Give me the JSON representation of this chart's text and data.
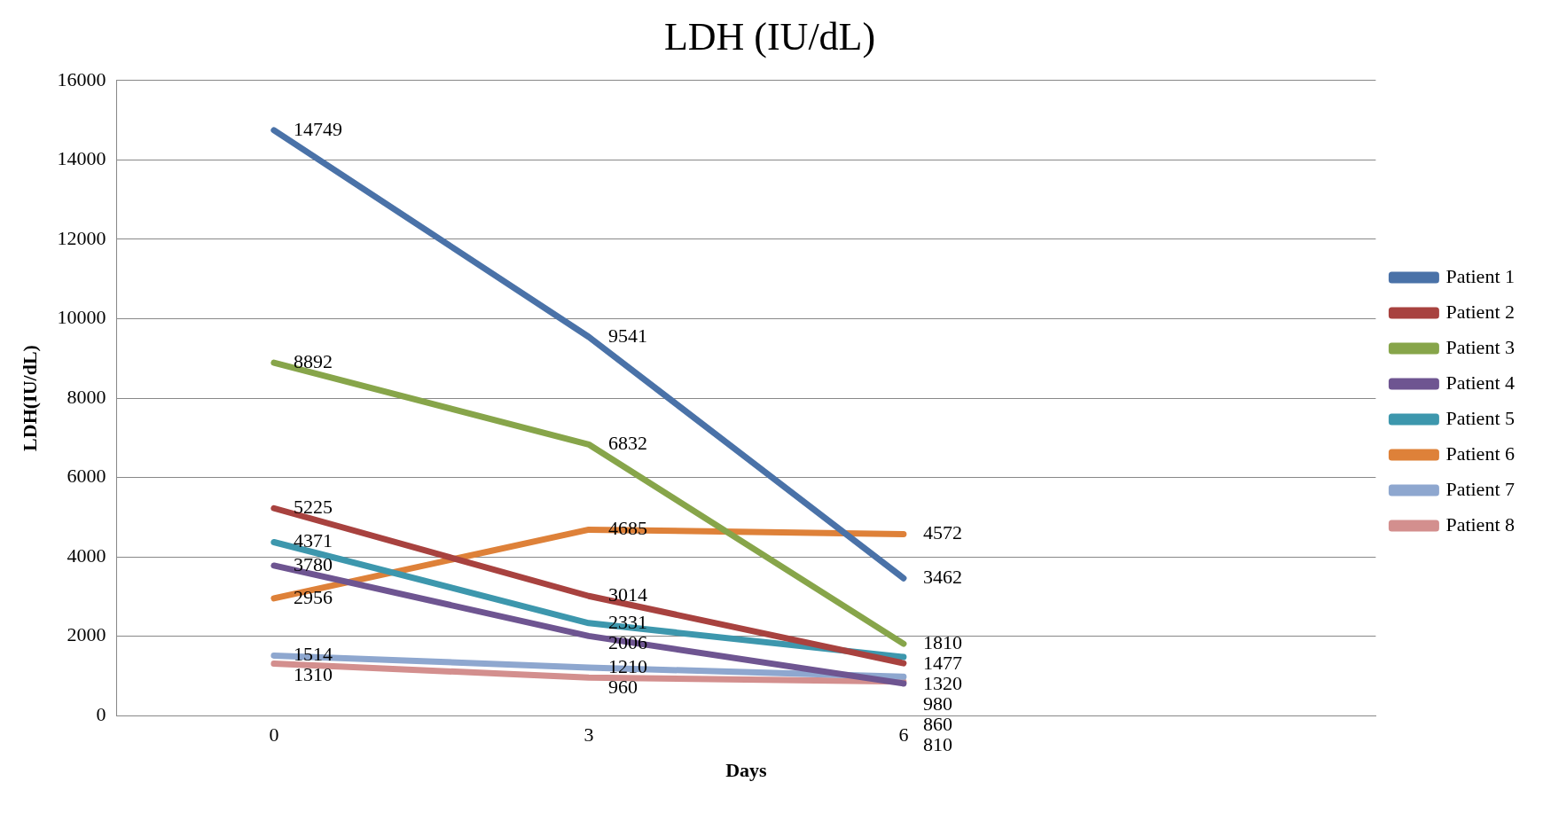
{
  "chart_data": {
    "type": "line",
    "title": "LDH (IU/dL)",
    "xlabel": "Days",
    "ylabel": "LDH(IU/dL)",
    "categories": [
      "0",
      "3",
      "6",
      null
    ],
    "ylim": [
      0,
      16000
    ],
    "yticks": [
      0,
      2000,
      4000,
      6000,
      8000,
      10000,
      12000,
      14000,
      16000
    ],
    "grid": "y",
    "legend": "right",
    "marker": "none",
    "line_style": "solid",
    "data_labels": true,
    "series": [
      {
        "name": "Patient 1",
        "color": "#4a72a8",
        "values": [
          14749,
          9541,
          3462,
          null
        ]
      },
      {
        "name": "Patient 2",
        "color": "#a8423f",
        "values": [
          5225,
          3014,
          1320,
          null
        ]
      },
      {
        "name": "Patient 3",
        "color": "#87a54a",
        "values": [
          8892,
          6832,
          1810,
          null
        ]
      },
      {
        "name": "Patient 4",
        "color": "#6e5591",
        "values": [
          3780,
          2006,
          810,
          null
        ]
      },
      {
        "name": "Patient 5",
        "color": "#3d97ad",
        "values": [
          4371,
          2331,
          1477,
          null
        ]
      },
      {
        "name": "Patient 6",
        "color": "#de8139",
        "values": [
          2956,
          4685,
          4572,
          null
        ]
      },
      {
        "name": "Patient 7",
        "color": "#8ea7cf",
        "values": [
          1514,
          1210,
          980,
          null
        ]
      },
      {
        "name": "Patient 8",
        "color": "#d38f8e",
        "values": [
          1310,
          960,
          860,
          null
        ]
      }
    ]
  }
}
